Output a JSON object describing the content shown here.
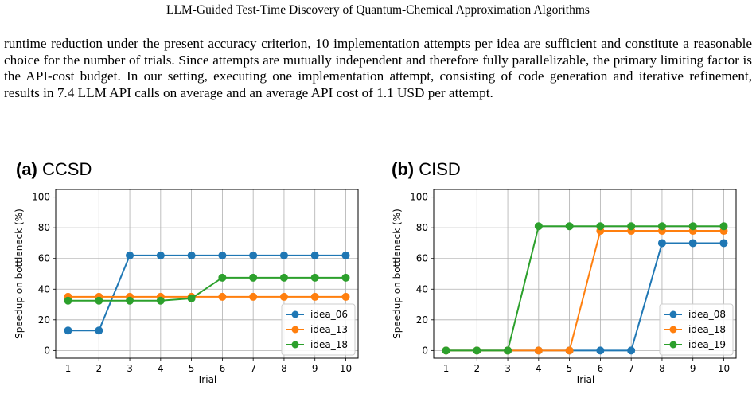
{
  "header": {
    "running_title": "LLM-Guided Test-Time Discovery of Quantum-Chemical Approximation Algorithms"
  },
  "body": {
    "paragraph": "runtime reduction under the present accuracy criterion, 10 implementation attempts per idea are sufficient and constitute a reasonable choice for the number of trials. Since attempts are mutually independent and therefore fully parallelizable, the primary limiting factor is the API-cost budget. In our setting, executing one implementation attempt, consisting of code generation and iterative refinement, results in 7.4 LLM API calls on average and an average API cost of 1.1 USD per attempt."
  },
  "figure": {
    "panels": [
      {
        "label": "(a)",
        "title": "CCSD"
      },
      {
        "label": "(b)",
        "title": "CISD"
      }
    ]
  },
  "colors": {
    "blue": "#1f77b4",
    "orange": "#ff7f0e",
    "green": "#2ca02c"
  },
  "chart_data": [
    {
      "type": "line",
      "title": "CCSD",
      "xlabel": "Trial",
      "ylabel": "Speedup on bottleneck (%)",
      "x": [
        1,
        2,
        3,
        4,
        5,
        6,
        7,
        8,
        9,
        10
      ],
      "xlim": [
        0.6,
        10.4
      ],
      "ylim": [
        -5,
        105
      ],
      "yticks": [
        0,
        20,
        40,
        60,
        80,
        100
      ],
      "grid": true,
      "legend": "lower-right",
      "series": [
        {
          "name": "idea_06",
          "color": "#1f77b4",
          "values": [
            13,
            13,
            62,
            62,
            62,
            62,
            62,
            62,
            62,
            62
          ]
        },
        {
          "name": "idea_13",
          "color": "#ff7f0e",
          "values": [
            35,
            35,
            35,
            35,
            35,
            35,
            35,
            35,
            35,
            35
          ]
        },
        {
          "name": "idea_18",
          "color": "#2ca02c",
          "values": [
            32.5,
            32.5,
            32.5,
            32.5,
            34,
            47.5,
            47.5,
            47.5,
            47.5,
            47.5
          ]
        }
      ]
    },
    {
      "type": "line",
      "title": "CISD",
      "xlabel": "Trial",
      "ylabel": "Speedup on bottleneck (%)",
      "x": [
        1,
        2,
        3,
        4,
        5,
        6,
        7,
        8,
        9,
        10
      ],
      "xlim": [
        0.6,
        10.4
      ],
      "ylim": [
        -5,
        105
      ],
      "yticks": [
        0,
        20,
        40,
        60,
        80,
        100
      ],
      "grid": true,
      "legend": "lower-right",
      "series": [
        {
          "name": "idea_08",
          "color": "#1f77b4",
          "values": [
            0,
            0,
            0,
            0,
            0,
            0,
            0,
            70,
            70,
            70
          ]
        },
        {
          "name": "idea_18",
          "color": "#ff7f0e",
          "values": [
            0,
            0,
            0,
            0,
            0,
            78,
            78,
            78,
            78,
            78
          ]
        },
        {
          "name": "idea_19",
          "color": "#2ca02c",
          "values": [
            0,
            0,
            0,
            81,
            81,
            81,
            81,
            81,
            81,
            81
          ]
        }
      ]
    }
  ]
}
